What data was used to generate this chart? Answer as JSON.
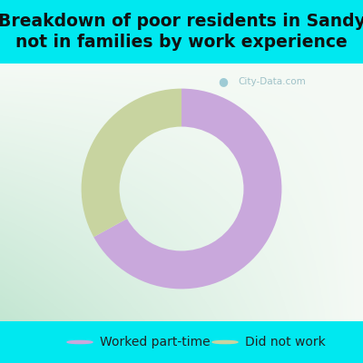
{
  "title_line1": "Breakdown of poor residents in Sandy",
  "title_line2": "not in families by work experience",
  "segments": [
    {
      "label": "Worked part-time",
      "value": 67,
      "color": "#c9a8dc"
    },
    {
      "label": "Did not work",
      "value": 33,
      "color": "#c8d4a0"
    }
  ],
  "title_bg_color": "#00e8f0",
  "watermark_text": "City-Data.com",
  "title_fontsize": 13.5,
  "legend_fontsize": 10,
  "start_angle": 90,
  "donut_width": 0.38,
  "title_color": "#111111",
  "legend_text_color": "#222222"
}
